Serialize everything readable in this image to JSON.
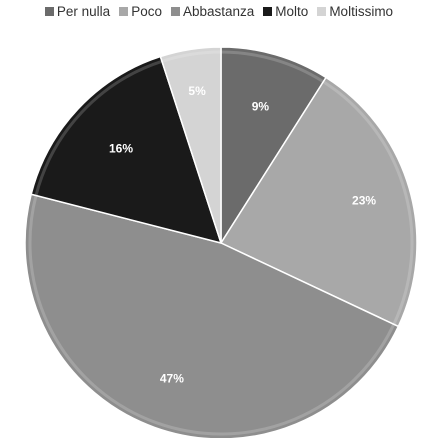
{
  "chart_data": {
    "type": "pie",
    "categories": [
      "Per nulla",
      "Poco",
      "Abbastanza",
      "Molto",
      "Moltissimo"
    ],
    "values": [
      9,
      23,
      47,
      16,
      5
    ],
    "labels": [
      "9%",
      "23%",
      "47%",
      "16%",
      "5%"
    ],
    "colors": [
      "#6b6b6b",
      "#a8a8a8",
      "#8e8e8e",
      "#1a1a1a",
      "#d4d4d4"
    ],
    "legend_position": "top",
    "start_angle_deg": 0,
    "direction": "clockwise"
  }
}
